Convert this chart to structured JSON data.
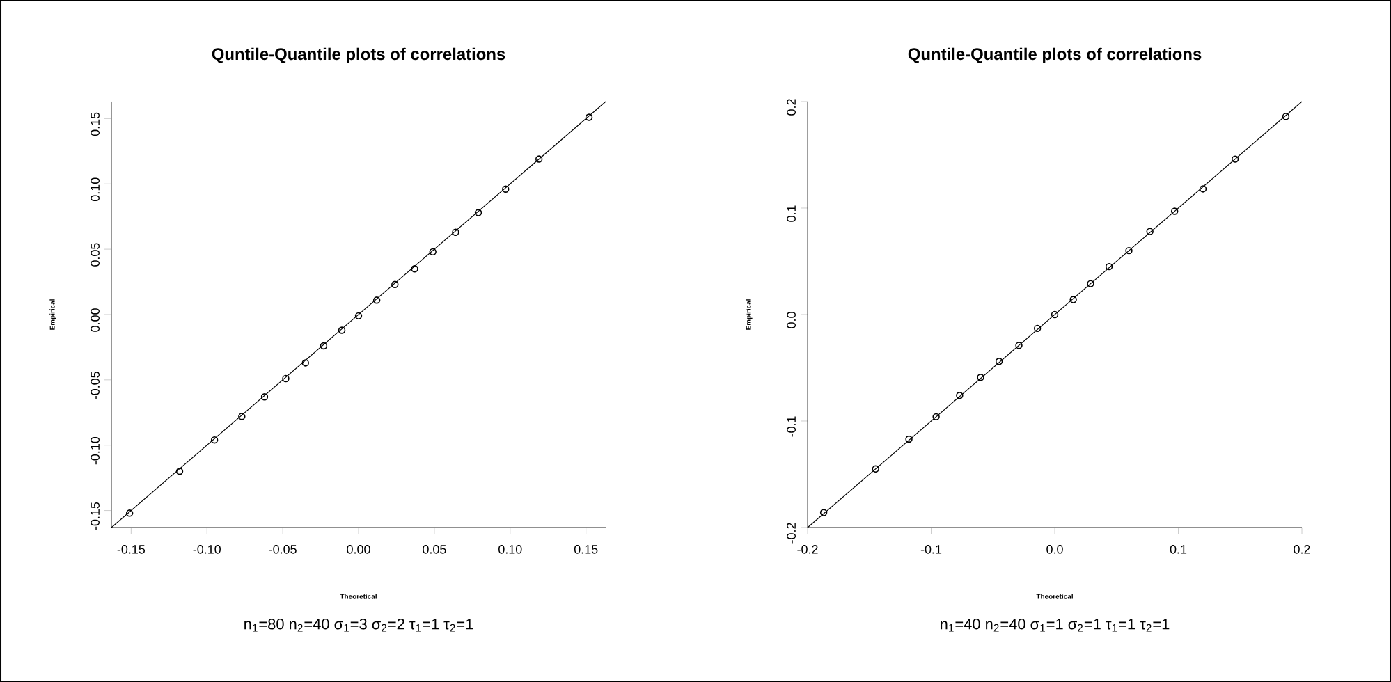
{
  "chart_data": [
    {
      "type": "scatter",
      "title": "Quntile-Quantile plots of correlations",
      "subtitle": "n$_{1}$=80  n$_{2}$=40  σ$_{1}$=3  σ$_{2}$=2  τ$_{1}$=1  τ$_{2}$=1",
      "xlabel": "Theoretical",
      "ylabel": "Empirical",
      "xlim": [
        -0.163,
        0.163
      ],
      "ylim": [
        -0.163,
        0.163
      ],
      "xticks": [
        {
          "value": -0.15,
          "label": "-0.15"
        },
        {
          "value": -0.1,
          "label": "-0.10"
        },
        {
          "value": -0.05,
          "label": "-0.05"
        },
        {
          "value": 0,
          "label": "0.00"
        },
        {
          "value": 0.05,
          "label": "0.05"
        },
        {
          "value": 0.1,
          "label": "0.10"
        },
        {
          "value": 0.15,
          "label": "0.15"
        }
      ],
      "yticks": [
        {
          "value": -0.15,
          "label": "-0.15"
        },
        {
          "value": -0.1,
          "label": "-0.10"
        },
        {
          "value": -0.05,
          "label": "-0.05"
        },
        {
          "value": 0,
          "label": "0.00"
        },
        {
          "value": 0.05,
          "label": "0.05"
        },
        {
          "value": 0.1,
          "label": "0.10"
        },
        {
          "value": 0.15,
          "label": "0.15"
        }
      ],
      "series": [
        {
          "marker": "circle",
          "color": "#000000",
          "x": [
            -0.151,
            -0.118,
            -0.095,
            -0.077,
            -0.062,
            -0.048,
            -0.035,
            -0.023,
            -0.011,
            0.0,
            0.012,
            0.024,
            0.037,
            0.049,
            0.064,
            0.079,
            0.097,
            0.119,
            0.152
          ],
          "values": [
            -0.152,
            -0.12,
            -0.096,
            -0.078,
            -0.063,
            -0.049,
            -0.037,
            -0.024,
            -0.012,
            -0.001,
            0.011,
            0.023,
            0.035,
            0.048,
            0.063,
            0.078,
            0.096,
            0.119,
            0.151
          ]
        },
        {
          "type": "line",
          "marker": "none",
          "color": "#000000",
          "line_style": "solid",
          "x": [
            -0.163,
            0.163
          ],
          "values": [
            -0.163,
            0.163
          ]
        }
      ]
    },
    {
      "type": "scatter",
      "title": "Quntile-Quantile plots of correlations",
      "subtitle": "n$_{1}$=40  n$_{2}$=40  σ$_{1}$=1  σ$_{2}$=1  τ$_{1}$=1  τ$_{2}$=1",
      "xlabel": "Theoretical",
      "ylabel": "Empirical",
      "xlim": [
        -0.2,
        0.2
      ],
      "ylim": [
        -0.2,
        0.2
      ],
      "xticks": [
        {
          "value": -0.2,
          "label": "-0.2"
        },
        {
          "value": -0.1,
          "label": "-0.1"
        },
        {
          "value": 0,
          "label": "0.0"
        },
        {
          "value": 0.1,
          "label": "0.1"
        },
        {
          "value": 0.2,
          "label": "0.2"
        }
      ],
      "yticks": [
        {
          "value": -0.2,
          "label": "-0.2"
        },
        {
          "value": -0.1,
          "label": "-0.1"
        },
        {
          "value": 0,
          "label": "0.0"
        },
        {
          "value": 0.1,
          "label": "0.1"
        },
        {
          "value": 0.2,
          "label": "0.2"
        }
      ],
      "series": [
        {
          "marker": "circle",
          "color": "#000000",
          "x": [
            -0.187,
            -0.145,
            -0.118,
            -0.096,
            -0.077,
            -0.06,
            -0.045,
            -0.029,
            -0.014,
            0.0,
            0.015,
            0.029,
            0.044,
            0.06,
            0.077,
            0.097,
            0.12,
            0.146,
            0.187
          ],
          "values": [
            -0.186,
            -0.145,
            -0.117,
            -0.096,
            -0.076,
            -0.059,
            -0.044,
            -0.029,
            -0.013,
            0.0,
            0.014,
            0.029,
            0.045,
            0.06,
            0.078,
            0.097,
            0.118,
            0.146,
            0.186
          ]
        },
        {
          "type": "line",
          "marker": "none",
          "color": "#000000",
          "line_style": "solid",
          "x": [
            -0.2,
            0.2
          ],
          "values": [
            -0.2,
            0.2
          ]
        }
      ]
    }
  ]
}
